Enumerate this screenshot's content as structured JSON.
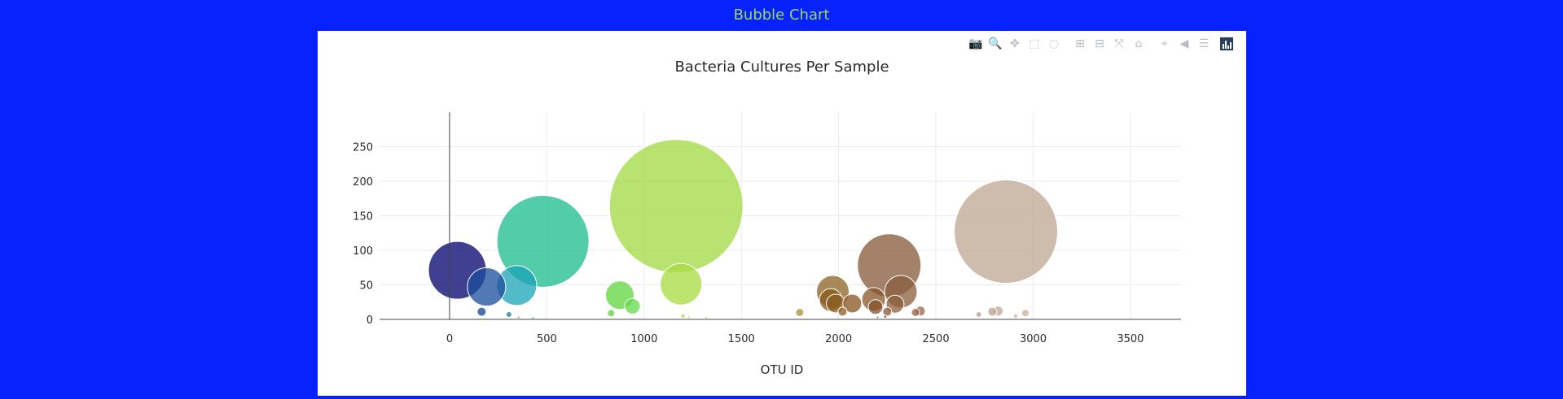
{
  "page": {
    "heading": "Bubble Chart"
  },
  "toolbar": {
    "buttons": [
      {
        "name": "camera-icon",
        "glyph": "📷"
      },
      {
        "name": "zoom-icon",
        "glyph": "🔍"
      },
      {
        "name": "pan-icon",
        "glyph": "✥"
      },
      {
        "name": "box-select-icon",
        "glyph": "⬚"
      },
      {
        "name": "lasso-select-icon",
        "glyph": "◌"
      },
      {
        "name": "zoom-in-icon",
        "glyph": "⊞"
      },
      {
        "name": "zoom-out-icon",
        "glyph": "⊟"
      },
      {
        "name": "autoscale-icon",
        "glyph": "⤧"
      },
      {
        "name": "reset-axes-icon",
        "glyph": "⌂"
      },
      {
        "name": "spike-lines-icon",
        "glyph": "⌖"
      },
      {
        "name": "hover-closest-icon",
        "glyph": "◀"
      },
      {
        "name": "hover-compare-icon",
        "glyph": "☰"
      }
    ],
    "logo": "plotly-logo-icon"
  },
  "chart_data": {
    "type": "scatter",
    "mode": "bubble",
    "title": "Bacteria Cultures Per Sample",
    "xlabel": "OTU ID",
    "ylabel": "",
    "xlim": [
      -360,
      3760
    ],
    "ylim": [
      0,
      300
    ],
    "xticks": [
      0,
      500,
      1000,
      1500,
      2000,
      2500,
      3000,
      3500
    ],
    "yticks": [
      0,
      50,
      100,
      150,
      200,
      250
    ],
    "grid": true,
    "colorscale": "Earth",
    "marker_size_equals_value": true,
    "points": [
      {
        "x": 40,
        "y": 71,
        "color": "#00006f"
      },
      {
        "x": 190,
        "y": 47,
        "color": "#1a4c9b"
      },
      {
        "x": 165,
        "y": 11,
        "color": "#12428e"
      },
      {
        "x": 345,
        "y": 49,
        "color": "#1aa3b8"
      },
      {
        "x": 305,
        "y": 7,
        "color": "#1c7b9d"
      },
      {
        "x": 480,
        "y": 113,
        "color": "#19bb8e"
      },
      {
        "x": 875,
        "y": 35,
        "color": "#5fd53e"
      },
      {
        "x": 940,
        "y": 19,
        "color": "#62d845"
      },
      {
        "x": 830,
        "y": 9,
        "color": "#5ed13c"
      },
      {
        "x": 1165,
        "y": 164,
        "color": "#a2d940"
      },
      {
        "x": 1190,
        "y": 51,
        "color": "#a8db40"
      },
      {
        "x": 1200,
        "y": 5,
        "color": "#a8d83c"
      },
      {
        "x": 1800,
        "y": 10,
        "color": "#a88f3a"
      },
      {
        "x": 1970,
        "y": 40,
        "color": "#8c6021"
      },
      {
        "x": 1960,
        "y": 28,
        "color": "#8a5b1c"
      },
      {
        "x": 1985,
        "y": 23,
        "color": "#8b5f22"
      },
      {
        "x": 2070,
        "y": 23,
        "color": "#86531c"
      },
      {
        "x": 2020,
        "y": 11,
        "color": "#8d5d20"
      },
      {
        "x": 2180,
        "y": 29,
        "color": "#855528"
      },
      {
        "x": 2190,
        "y": 18,
        "color": "#84512a"
      },
      {
        "x": 2250,
        "y": 11,
        "color": "#89562e"
      },
      {
        "x": 2260,
        "y": 78,
        "color": "#865838"
      },
      {
        "x": 2320,
        "y": 40,
        "color": "#8a5e3e"
      },
      {
        "x": 2290,
        "y": 22,
        "color": "#8b5c3c"
      },
      {
        "x": 2420,
        "y": 12,
        "color": "#94654a"
      },
      {
        "x": 2395,
        "y": 10,
        "color": "#916245"
      },
      {
        "x": 2720,
        "y": 7,
        "color": "#b89e89"
      },
      {
        "x": 2790,
        "y": 11,
        "color": "#bca28f"
      },
      {
        "x": 2820,
        "y": 12,
        "color": "#bfa693"
      },
      {
        "x": 2910,
        "y": 5,
        "color": "#c4ab99"
      },
      {
        "x": 2960,
        "y": 9,
        "color": "#c5ae9c"
      },
      {
        "x": 2860,
        "y": 127,
        "color": "#bea692"
      },
      {
        "x": 2200,
        "y": 3,
        "color": "#7a4a28"
      },
      {
        "x": 2240,
        "y": 4,
        "color": "#7e4c2a"
      },
      {
        "x": 1230,
        "y": 3,
        "color": "#a8d83c"
      },
      {
        "x": 1320,
        "y": 2,
        "color": "#b0d848"
      },
      {
        "x": 355,
        "y": 3,
        "color": "#1c8fa8"
      },
      {
        "x": 430,
        "y": 2,
        "color": "#19b29a"
      }
    ]
  }
}
